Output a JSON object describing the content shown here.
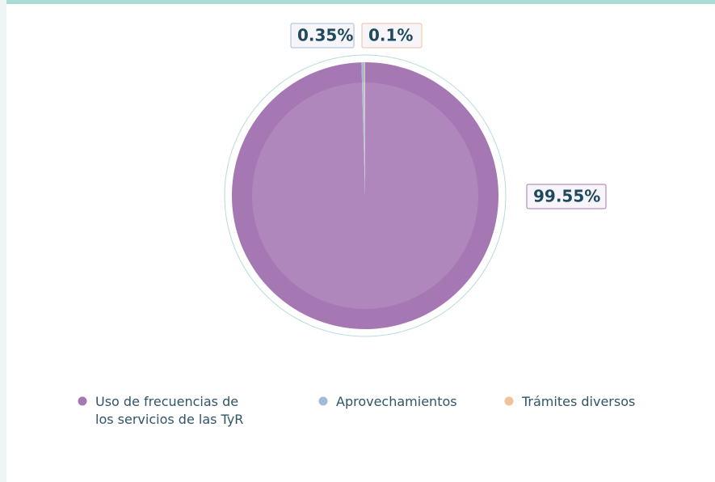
{
  "chart_data": {
    "type": "pie",
    "categories": [
      "Uso de frecuencias de los servicios de las TyR",
      "Aprovechamientos",
      "Trámites diversos"
    ],
    "values": [
      99.55,
      0.35,
      0.1
    ],
    "value_labels": [
      "99.55%",
      "0.35%",
      "0.1%"
    ],
    "colors": [
      "#a577b3",
      "#a3bcd6",
      "#f2c19a"
    ],
    "legend": "bottom"
  }
}
